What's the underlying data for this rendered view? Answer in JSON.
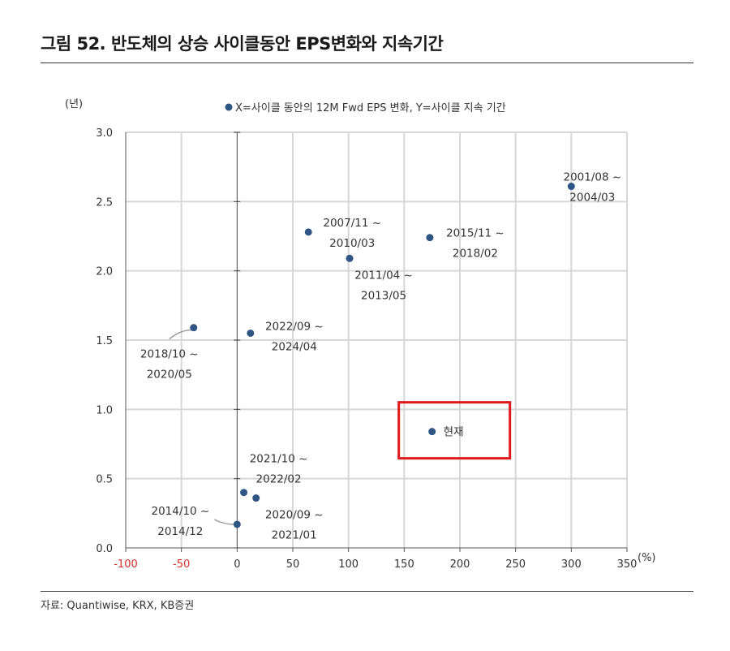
{
  "figure": {
    "title": "그림 52. 반도체의 상승 사이클동안 EPS변화와 지속기간",
    "source": "자료: Quantiwise, KRX, KB증권"
  },
  "colors": {
    "point": "#2e5584",
    "grid": "#d7d7d7",
    "axis": "#555555",
    "negative_tick": "#d9302c",
    "highlight": "#e0191c",
    "leader": "#9a9a9a"
  },
  "chart_data": {
    "type": "scatter",
    "title": "",
    "xlabel": "(%)",
    "ylabel": "(년)",
    "legend": "X=사이클 동안의 12M Fwd EPS 변화, Y=사이클 지속 기간",
    "legend_position": "top-center",
    "grid": true,
    "xlim": [
      -100,
      350
    ],
    "ylim": [
      0.0,
      3.0
    ],
    "xticks": [
      -100,
      -50,
      0,
      50,
      100,
      150,
      200,
      250,
      300,
      350
    ],
    "xtick_labels": [
      "-100",
      "-50",
      "0",
      "50",
      "100",
      "150",
      "200",
      "250",
      "300",
      "350"
    ],
    "yticks": [
      0.0,
      0.5,
      1.0,
      1.5,
      2.0,
      2.5,
      3.0
    ],
    "ytick_labels": [
      "0.0",
      "0.5",
      "1.0",
      "1.5",
      "2.0",
      "2.5",
      "3.0"
    ],
    "points": [
      {
        "x": 300,
        "y": 2.61,
        "label": [
          "2001/08 ~",
          "2004/03"
        ]
      },
      {
        "x": 64,
        "y": 2.28,
        "label": [
          "2007/11 ~",
          "2010/03"
        ]
      },
      {
        "x": 101,
        "y": 2.09,
        "label": [
          "2011/04 ~",
          "2013/05"
        ]
      },
      {
        "x": 173,
        "y": 2.24,
        "label": [
          "2015/11 ~",
          "2018/02"
        ]
      },
      {
        "x": -39,
        "y": 1.59,
        "label": [
          "2018/10 ~",
          "2020/05"
        ]
      },
      {
        "x": 12,
        "y": 1.55,
        "label": [
          "2022/09 ~",
          "2024/04"
        ]
      },
      {
        "x": 6,
        "y": 0.4,
        "label": [
          "2021/10 ~",
          "2022/02"
        ]
      },
      {
        "x": 17,
        "y": 0.36,
        "label": [
          "2020/09 ~",
          "2021/01"
        ]
      },
      {
        "x": 0,
        "y": 0.17,
        "label": [
          "2014/10 ~",
          "2014/12"
        ]
      },
      {
        "x": 175,
        "y": 0.84,
        "label": [
          "현재"
        ],
        "highlight": true
      }
    ]
  }
}
